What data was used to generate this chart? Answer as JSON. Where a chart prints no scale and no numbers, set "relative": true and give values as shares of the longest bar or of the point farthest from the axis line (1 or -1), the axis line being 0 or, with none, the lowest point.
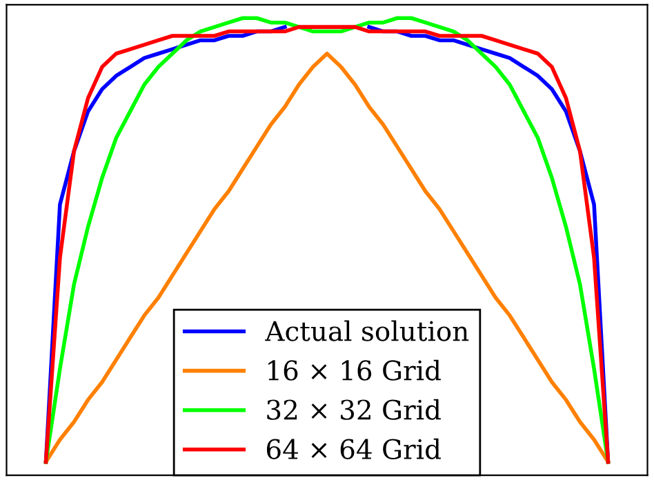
{
  "chart_data": {
    "type": "line",
    "relative": true,
    "legend": "bottom",
    "grid": false,
    "marker": "none",
    "line_style": "solid",
    "categories": [
      null,
      null,
      null,
      null,
      null,
      null,
      null,
      null,
      null,
      null,
      null,
      null,
      null,
      null,
      null,
      null,
      null,
      null,
      null,
      null,
      null,
      null,
      null,
      null,
      null,
      null,
      null,
      null,
      null,
      null,
      null,
      null,
      null,
      null,
      null,
      null,
      null,
      null,
      null,
      null,
      null
    ],
    "series": [
      {
        "name": "Actual solution",
        "color": "#0000ff",
        "values": [
          0,
          0.58,
          0.7,
          0.79,
          0.84,
          0.87,
          0.89,
          0.91,
          0.92,
          0.93,
          0.94,
          0.95,
          0.95,
          0.96,
          0.96,
          0.97,
          0.97,
          0.98,
          null,
          null,
          null,
          null,
          null,
          0.98,
          0.97,
          0.97,
          0.96,
          0.96,
          0.95,
          0.95,
          0.94,
          0.93,
          0.92,
          0.91,
          0.89,
          0.87,
          0.84,
          0.79,
          0.7,
          0.58,
          0
        ]
      },
      {
        "name": "16 × 16 Grid",
        "color": "#ff8000",
        "values": [
          0,
          0.05,
          0.09,
          0.14,
          0.18,
          0.23,
          0.28,
          0.33,
          0.37,
          0.42,
          0.47,
          0.52,
          0.57,
          0.61,
          0.66,
          0.71,
          0.76,
          0.8,
          0.85,
          0.89,
          0.92,
          0.89,
          0.85,
          0.8,
          0.76,
          0.71,
          0.66,
          0.61,
          0.57,
          0.52,
          0.47,
          0.42,
          0.37,
          0.33,
          0.28,
          0.23,
          0.18,
          0.14,
          0.09,
          0.05,
          0
        ]
      },
      {
        "name": "32 × 32 Grid",
        "color": "#00ff00",
        "values": [
          0,
          0.21,
          0.4,
          0.53,
          0.64,
          0.73,
          0.79,
          0.85,
          0.89,
          0.92,
          0.95,
          0.97,
          0.98,
          0.99,
          1.0,
          1.0,
          0.99,
          0.99,
          0.98,
          0.97,
          0.97,
          0.97,
          0.98,
          0.99,
          0.99,
          1.0,
          1.0,
          0.99,
          0.98,
          0.97,
          0.95,
          0.92,
          0.89,
          0.85,
          0.79,
          0.73,
          0.64,
          0.53,
          0.4,
          0.21,
          0
        ]
      },
      {
        "name": "64 × 64 Grid",
        "color": "#ff0000",
        "values": [
          0,
          0.46,
          0.7,
          0.82,
          0.89,
          0.92,
          0.93,
          0.94,
          0.95,
          0.96,
          0.96,
          0.96,
          0.96,
          0.97,
          0.97,
          0.97,
          0.97,
          0.97,
          0.98,
          0.98,
          0.98,
          0.98,
          0.98,
          0.97,
          0.97,
          0.97,
          0.97,
          0.97,
          0.96,
          0.96,
          0.96,
          0.96,
          0.95,
          0.94,
          0.93,
          0.92,
          0.89,
          0.82,
          0.7,
          0.46,
          0
        ]
      }
    ]
  }
}
